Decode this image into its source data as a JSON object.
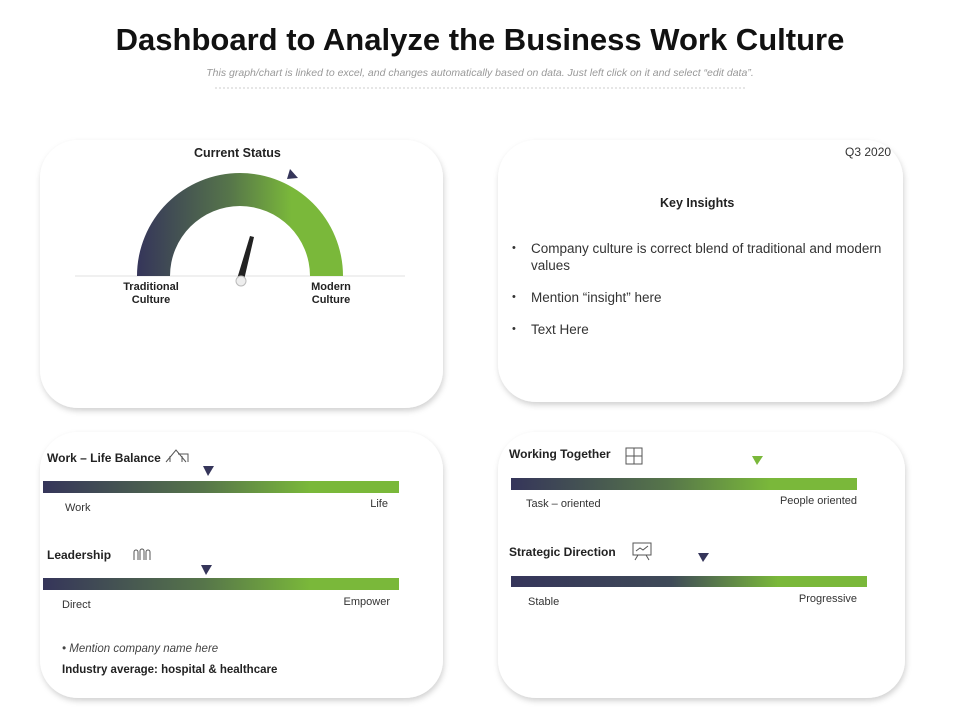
{
  "header": {
    "title": "Dashboard to Analyze the Business Work Culture",
    "subtitle": "This graph/chart is linked to excel, and changes automatically based on data. Just left click on it and select “edit data”."
  },
  "current_status": {
    "title": "Current Status",
    "left_label": "Traditional Culture",
    "right_label": "Modern Culture"
  },
  "key_insights": {
    "period": "Q3 2020",
    "title": "Key Insights",
    "bullets": [
      "Company culture is correct blend of traditional and modern values",
      "Mention “insight” here",
      "Text Here"
    ]
  },
  "sliders": [
    {
      "title": "Work – Life Balance",
      "left": "Work",
      "right": "Life"
    },
    {
      "title": "Leadership",
      "left": "Direct",
      "right": "Empower"
    },
    {
      "title": "Working Together",
      "left": "Task – oriented",
      "right": "People oriented"
    },
    {
      "title": "Strategic Direction",
      "left": "Stable",
      "right": "Progressive"
    }
  ],
  "footer": {
    "note": "Mention company name here",
    "industry": "Industry average: hospital & healthcare"
  }
}
